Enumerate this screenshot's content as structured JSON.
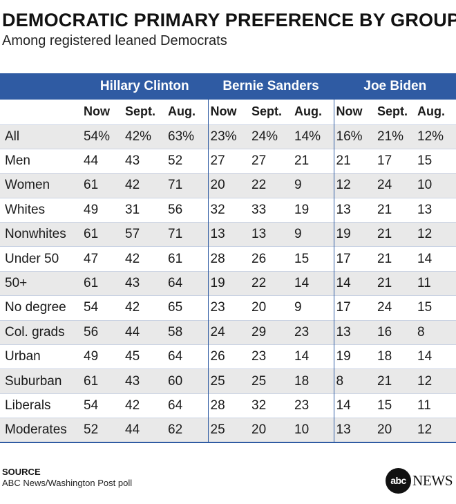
{
  "header": {
    "title": "DEMOCRATIC PRIMARY PREFERENCE BY GROUP",
    "subtitle": "Among registered leaned Democrats"
  },
  "footer": {
    "source_label": "SOURCE",
    "source_text": "ABC News/Washington Post poll",
    "logo_text": "abc",
    "logo_news": "NEWS"
  },
  "colors": {
    "header_band": "#2f5ba3",
    "shaded_row": "#e9e9e9"
  },
  "chart_data": {
    "type": "table",
    "title": "DEMOCRATIC PRIMARY PREFERENCE BY GROUP",
    "subtitle": "Among registered leaned Democrats",
    "candidates": [
      "Hillary Clinton",
      "Bernie Sanders",
      "Joe Biden"
    ],
    "periods": [
      "Now",
      "Sept.",
      "Aug."
    ],
    "rows": [
      {
        "group": "All",
        "values": [
          "54%",
          "42%",
          "63%",
          "23%",
          "24%",
          "14%",
          "16%",
          "21%",
          "12%"
        ]
      },
      {
        "group": "Men",
        "values": [
          "44",
          "43",
          "52",
          "27",
          "27",
          "21",
          "21",
          "17",
          "15"
        ]
      },
      {
        "group": "Women",
        "values": [
          "61",
          "42",
          "71",
          "20",
          "22",
          "9",
          "12",
          "24",
          "10"
        ]
      },
      {
        "group": "Whites",
        "values": [
          "49",
          "31",
          "56",
          "32",
          "33",
          "19",
          "13",
          "21",
          "13"
        ]
      },
      {
        "group": "Nonwhites",
        "values": [
          "61",
          "57",
          "71",
          "13",
          "13",
          "9",
          "19",
          "21",
          "12"
        ]
      },
      {
        "group": "Under 50",
        "values": [
          "47",
          "42",
          "61",
          "28",
          "26",
          "15",
          "17",
          "21",
          "14"
        ]
      },
      {
        "group": "50+",
        "values": [
          "61",
          "43",
          "64",
          "19",
          "22",
          "14",
          "14",
          "21",
          "11"
        ]
      },
      {
        "group": "No degree",
        "values": [
          "54",
          "42",
          "65",
          "23",
          "20",
          "9",
          "17",
          "24",
          "15"
        ]
      },
      {
        "group": "Col. grads",
        "values": [
          "56",
          "44",
          "58",
          "24",
          "29",
          "23",
          "13",
          "16",
          "8"
        ]
      },
      {
        "group": "Urban",
        "values": [
          "49",
          "45",
          "64",
          "26",
          "23",
          "14",
          "19",
          "18",
          "14"
        ]
      },
      {
        "group": "Suburban",
        "values": [
          "61",
          "43",
          "60",
          "25",
          "25",
          "18",
          "8",
          "21",
          "12"
        ]
      },
      {
        "group": "Liberals",
        "values": [
          "54",
          "42",
          "64",
          "28",
          "32",
          "23",
          "14",
          "15",
          "11"
        ]
      },
      {
        "group": "Moderates",
        "values": [
          "52",
          "44",
          "62",
          "25",
          "20",
          "10",
          "13",
          "20",
          "12"
        ]
      }
    ]
  }
}
